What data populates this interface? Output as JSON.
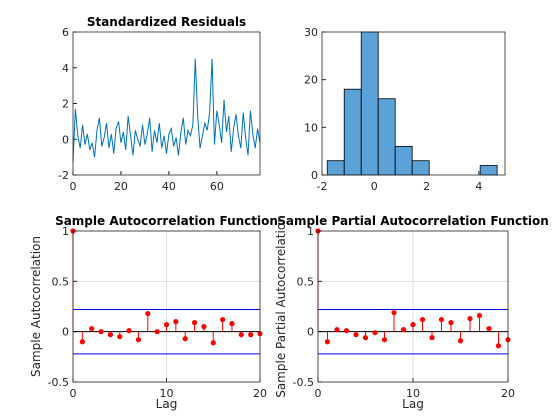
{
  "chart_data": [
    {
      "type": "line",
      "title": "Standardized Residuals",
      "color": "#0072bd",
      "grid": false,
      "x": [
        0,
        1,
        2,
        3,
        4,
        5,
        6,
        7,
        8,
        9,
        10,
        11,
        12,
        13,
        14,
        15,
        16,
        17,
        18,
        19,
        20,
        21,
        22,
        23,
        24,
        25,
        26,
        27,
        28,
        29,
        30,
        31,
        32,
        33,
        34,
        35,
        36,
        37,
        38,
        39,
        40,
        41,
        42,
        43,
        44,
        45,
        46,
        47,
        48,
        49,
        50,
        51,
        52,
        53,
        54,
        55,
        56,
        57,
        58,
        59,
        60,
        61,
        62,
        63,
        64,
        65,
        66,
        67,
        68,
        69,
        70,
        71,
        72,
        73,
        74,
        75,
        76,
        77,
        78
      ],
      "values": [
        -1.3,
        1.7,
        0.2,
        -0.5,
        0.8,
        -0.3,
        0.3,
        -0.6,
        -0.2,
        -1.0,
        0.5,
        1.2,
        -0.4,
        0.1,
        0.9,
        -0.5,
        0.3,
        -0.8,
        0.6,
        1.0,
        -0.2,
        0.4,
        -0.6,
        1.3,
        0.2,
        -0.9,
        0.5,
        0.0,
        -0.4,
        0.8,
        -0.3,
        0.3,
        1.2,
        -0.7,
        0.5,
        -0.2,
        0.9,
        -0.5,
        0.2,
        -0.8,
        0.3,
        0.6,
        -0.4,
        0.1,
        -0.9,
        0.4,
        1.2,
        -0.3,
        0.5,
        0.2,
        0.8,
        4.5,
        1.3,
        -0.5,
        0.2,
        0.9,
        0.5,
        1.5,
        4.5,
        -0.3,
        1.6,
        0.8,
        -0.2,
        2.2,
        0.4,
        1.3,
        -0.7,
        0.6,
        1.4,
        0.2,
        -0.5,
        1.5,
        0.1,
        -0.9,
        1.6,
        0.3,
        -0.5,
        0.6,
        -0.2
      ],
      "xlim": [
        0,
        78
      ],
      "xticks": [
        0,
        20,
        40,
        60
      ],
      "ylim": [
        -2,
        6
      ],
      "yticks": [
        -2,
        0,
        2,
        4,
        6
      ]
    },
    {
      "type": "histogram",
      "color": "#5aa2d8",
      "grid": false,
      "bins": [
        -1.8,
        -1.15,
        -0.5,
        0.15,
        0.8,
        1.45,
        2.1,
        2.75,
        3.4,
        4.05,
        4.7
      ],
      "values": [
        3,
        18,
        30,
        16,
        6,
        3,
        0,
        0,
        0,
        2
      ],
      "xlim": [
        -2,
        5
      ],
      "xticks": [
        -2,
        0,
        2,
        4
      ],
      "ylim": [
        0,
        30
      ],
      "yticks": [
        0,
        10,
        20,
        30
      ]
    },
    {
      "type": "stem",
      "title": "Sample Autocorrelation Function",
      "xlabel": "Lag",
      "ylabel": "Sample Autocorrelation",
      "color": "#ff0000",
      "bounds_color": "#0000ff",
      "bounds": [
        -0.22,
        0.22
      ],
      "grid": true,
      "x": [
        0,
        1,
        2,
        3,
        4,
        5,
        6,
        7,
        8,
        9,
        10,
        11,
        12,
        13,
        14,
        15,
        16,
        17,
        18,
        19,
        20
      ],
      "values": [
        1,
        -0.1,
        0.03,
        0.0,
        -0.03,
        -0.05,
        0.01,
        -0.08,
        0.18,
        0.0,
        0.07,
        0.1,
        -0.07,
        0.09,
        0.05,
        -0.11,
        0.12,
        0.08,
        -0.03,
        -0.03,
        -0.02
      ],
      "xlim": [
        0,
        20
      ],
      "xticks": [
        0,
        10,
        20
      ],
      "ylim": [
        -0.5,
        1
      ],
      "yticks": [
        -0.5,
        0,
        0.5,
        1
      ]
    },
    {
      "type": "stem",
      "title": "Sample Partial Autocorrelation Function",
      "xlabel": "Lag",
      "ylabel": "Sample Partial Autocorrelation",
      "color": "#ff0000",
      "bounds_color": "#0000ff",
      "bounds": [
        -0.22,
        0.22
      ],
      "grid": true,
      "x": [
        0,
        1,
        2,
        3,
        4,
        5,
        6,
        7,
        8,
        9,
        10,
        11,
        12,
        13,
        14,
        15,
        16,
        17,
        18,
        19,
        20
      ],
      "values": [
        1,
        -0.1,
        0.02,
        0.01,
        -0.03,
        -0.06,
        -0.01,
        -0.08,
        0.19,
        0.02,
        0.07,
        0.12,
        -0.06,
        0.12,
        0.09,
        -0.09,
        0.13,
        0.16,
        0.03,
        -0.14,
        -0.08
      ],
      "xlim": [
        0,
        20
      ],
      "xticks": [
        0,
        10,
        20
      ],
      "ylim": [
        -0.5,
        1
      ],
      "yticks": [
        -0.5,
        0,
        0.5,
        1
      ]
    }
  ]
}
